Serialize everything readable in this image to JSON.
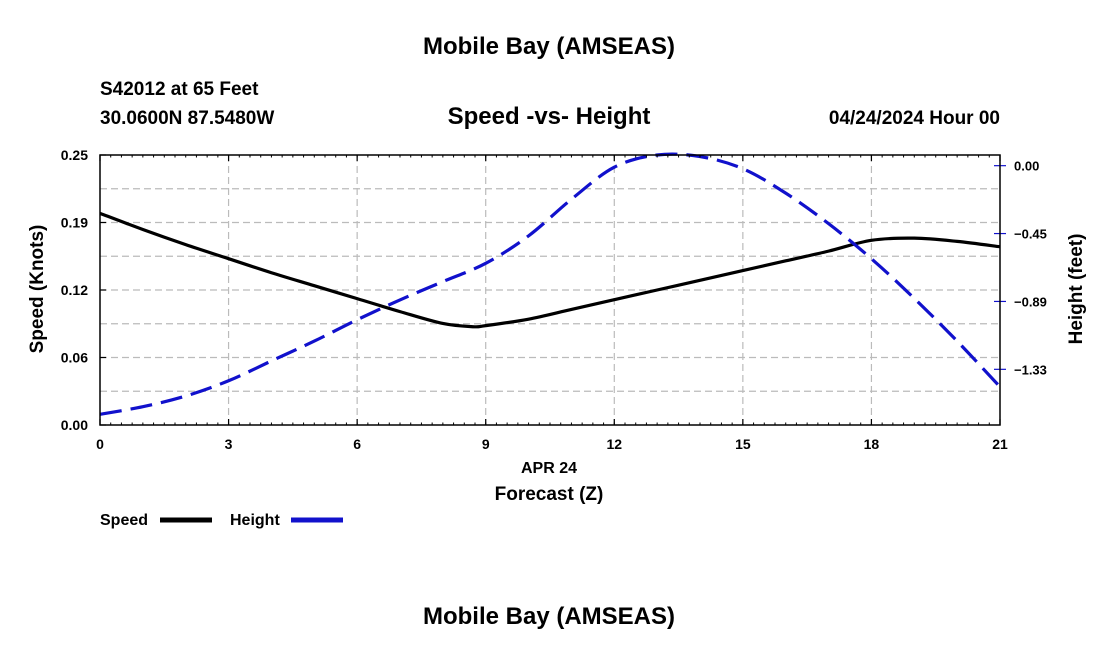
{
  "header": {
    "title": "Mobile Bay (AMSEAS)",
    "station": "S42012 at 65 Feet",
    "coords": "30.0600N  87.5480W",
    "subtitle": "Speed -vs- Height",
    "date": "04/24/2024 Hour 00"
  },
  "footer": {
    "title": "Mobile Bay (AMSEAS)"
  },
  "chart_data": {
    "type": "line",
    "title": "Speed -vs- Height",
    "xlabel": "Forecast (Z)",
    "xsublabel": "APR 24",
    "ylabel": "Speed (Knots)",
    "y2label": "Height (feet)",
    "x_ticks": [
      0,
      3,
      6,
      9,
      12,
      15,
      18,
      21
    ],
    "x_tick_labels": [
      "0",
      "3",
      "6",
      "9",
      "12",
      "15",
      "18",
      "21"
    ],
    "xlim": [
      0,
      21
    ],
    "ylim": [
      0,
      0.25
    ],
    "y_ticks": [
      0,
      0.0625,
      0.125,
      0.1875,
      0.25
    ],
    "y_tick_labels": [
      "0.00",
      "0.06",
      "0.12",
      "0.19",
      "0.25"
    ],
    "y2lim": [
      -1.7,
      0.07
    ],
    "y2_ticks": [
      0,
      -0.445,
      -0.89,
      -1.335
    ],
    "y2_tick_labels": [
      "0.00",
      "−0.45",
      "−0.89",
      "−1.33"
    ],
    "grid": true,
    "legend_position": "bottom-left",
    "colors": {
      "speed": "#000000",
      "height": "#1111cc",
      "grid": "#bbbbbb"
    },
    "series": [
      {
        "name": "Speed",
        "axis": "left",
        "style": "solid",
        "x": [
          0,
          1,
          2,
          3,
          4,
          5,
          6,
          7,
          8,
          8.7,
          9,
          10,
          11,
          12,
          13,
          14,
          15,
          16,
          17,
          18,
          19,
          20,
          21
        ],
        "values": [
          0.196,
          0.181,
          0.167,
          0.154,
          0.141,
          0.129,
          0.117,
          0.105,
          0.094,
          0.091,
          0.092,
          0.098,
          0.107,
          0.116,
          0.125,
          0.134,
          0.143,
          0.152,
          0.161,
          0.171,
          0.173,
          0.17,
          0.165
        ]
      },
      {
        "name": "Height",
        "axis": "right",
        "style": "dashed",
        "x": [
          0,
          1,
          2,
          3,
          4,
          5,
          6,
          7,
          8,
          9,
          10,
          11,
          12,
          13,
          14,
          15,
          16,
          17,
          18,
          19,
          20,
          21
        ],
        "values": [
          -1.63,
          -1.58,
          -1.51,
          -1.41,
          -1.28,
          -1.15,
          -1.01,
          -0.88,
          -0.76,
          -0.64,
          -0.46,
          -0.22,
          -0.01,
          0.07,
          0.06,
          -0.02,
          -0.18,
          -0.38,
          -0.61,
          -0.87,
          -1.15,
          -1.45
        ]
      }
    ]
  }
}
